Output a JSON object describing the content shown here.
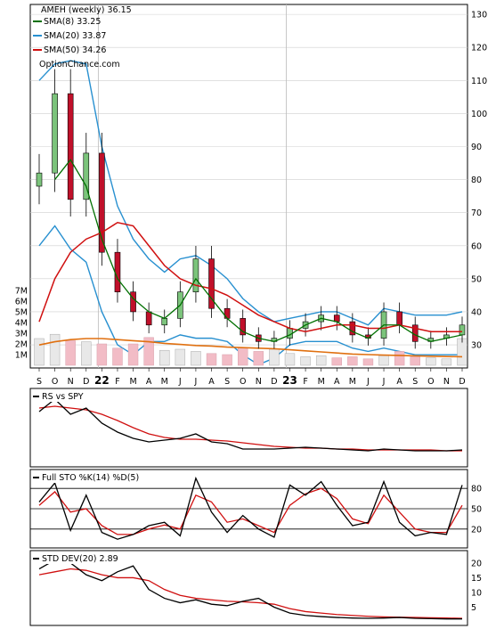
{
  "chart_data": [
    {
      "type": "line",
      "panel": "price",
      "title": "AMEH (weekly) 36.15",
      "watermark": "OptionChance.com",
      "legend": [
        {
          "label": "SMA(8) 33.25",
          "color": "#007000"
        },
        {
          "label": "SMA(20) 33.87",
          "color": "#2890d0"
        },
        {
          "label": "SMA(50) 34.26",
          "color": "#d01010"
        }
      ],
      "y_ticks": [
        "130",
        "120",
        "110",
        "100",
        "90",
        "80",
        "70",
        "60",
        "50",
        "40",
        "30"
      ],
      "ylim": [
        23,
        133
      ],
      "months": [
        "S",
        "O",
        "N",
        "D",
        "22",
        "F",
        "M",
        "A",
        "M",
        "J",
        "J",
        "A",
        "S",
        "O",
        "N",
        "D",
        "23",
        "F",
        "M",
        "A",
        "M",
        "J",
        "J",
        "A",
        "S",
        "O",
        "N",
        "D"
      ],
      "close_monthly": [
        82,
        106,
        74,
        88,
        58,
        46,
        40,
        36,
        38,
        46,
        56,
        41,
        38,
        33,
        31,
        32,
        35,
        37,
        39,
        37,
        33,
        32,
        40,
        36,
        31,
        32,
        33,
        36
      ],
      "sma8_monthly": [
        null,
        80,
        86,
        78,
        62,
        50,
        44,
        40,
        38,
        42,
        50,
        44,
        38,
        34,
        32,
        31,
        33,
        36,
        38,
        37,
        34,
        32,
        36,
        36,
        33,
        31,
        32,
        33
      ],
      "sma50_monthly": [
        37,
        50,
        58,
        62,
        64,
        67,
        66,
        60,
        54,
        50,
        48,
        47,
        45,
        42,
        39,
        37,
        35,
        34,
        35,
        36,
        36,
        35,
        35,
        36,
        35,
        34,
        34,
        34
      ],
      "bb_upper_monthly": [
        110,
        115,
        116,
        115,
        90,
        72,
        62,
        56,
        52,
        56,
        57,
        54,
        50,
        44,
        40,
        37,
        38,
        39,
        40,
        40,
        38,
        36,
        41,
        40,
        39,
        39,
        39,
        40
      ],
      "bb_lower_monthly": [
        60,
        66,
        59,
        55,
        40,
        30,
        27,
        31,
        31,
        33,
        32,
        32,
        31,
        27,
        24,
        26,
        30,
        31,
        31,
        31,
        29,
        28,
        29,
        28,
        27,
        27,
        27,
        27
      ]
    },
    {
      "type": "bar",
      "panel": "volume",
      "y_ticks": [
        "7M",
        "6M",
        "5M",
        "4M",
        "3M",
        "2M",
        "1M"
      ],
      "ylim": [
        0,
        7000000
      ],
      "volume_monthly": [
        2500000,
        2900000,
        2300000,
        2200000,
        2000000,
        1600000,
        2000000,
        2600000,
        1400000,
        1500000,
        1300000,
        1100000,
        1000000,
        1600000,
        1300000,
        1500000,
        1100000,
        800000,
        900000,
        700000,
        800000,
        600000,
        900000,
        1300000,
        800000,
        700000,
        600000,
        2500000
      ],
      "volume_avg_monthly": [
        1900000,
        2200000,
        2400000,
        2500000,
        2500000,
        2400000,
        2300000,
        2200000,
        2050000,
        1950000,
        1850000,
        1800000,
        1700000,
        1650000,
        1600000,
        1550000,
        1450000,
        1350000,
        1250000,
        1150000,
        1050000,
        1000000,
        950000,
        920000,
        880000,
        850000,
        820000,
        800000
      ]
    },
    {
      "type": "line",
      "panel": "rs",
      "title": "RS vs SPY",
      "rs_monthly": [
        58,
        72,
        55,
        62,
        45,
        35,
        28,
        24,
        26,
        28,
        33,
        24,
        22,
        16,
        16,
        16,
        17,
        18,
        17,
        16,
        15,
        14,
        16,
        15,
        14,
        14,
        14,
        15
      ],
      "rs_avg_monthly": [
        62,
        64,
        62,
        60,
        55,
        48,
        40,
        33,
        29,
        27,
        27,
        26,
        25,
        23,
        21,
        19,
        18,
        17,
        17,
        16,
        16,
        15,
        15,
        15,
        15,
        15,
        14,
        14
      ]
    },
    {
      "type": "line",
      "panel": "stochastic",
      "title": "Full STO %K(14) %D(5)",
      "y_ticks": [
        "80",
        "50",
        "20"
      ],
      "ylim": [
        0,
        100
      ],
      "k_monthly": [
        60,
        88,
        18,
        70,
        15,
        5,
        12,
        25,
        30,
        10,
        95,
        45,
        15,
        40,
        20,
        8,
        85,
        70,
        90,
        55,
        25,
        30,
        90,
        30,
        10,
        15,
        12,
        85
      ],
      "d_monthly": [
        55,
        75,
        45,
        50,
        25,
        12,
        12,
        20,
        26,
        20,
        70,
        60,
        30,
        35,
        25,
        15,
        55,
        72,
        80,
        65,
        35,
        28,
        70,
        45,
        20,
        15,
        15,
        55
      ]
    },
    {
      "type": "line",
      "panel": "stddev",
      "title": "STD DEV(20) 2.89",
      "y_ticks": [
        "20",
        "15",
        "10",
        "5"
      ],
      "ylim": [
        0,
        23
      ],
      "std_monthly": [
        18,
        21,
        20,
        16,
        14,
        17,
        19,
        11,
        8,
        6.5,
        7.5,
        6,
        5.5,
        7,
        8,
        5,
        3,
        2.2,
        1.8,
        1.5,
        1.3,
        1.2,
        1.3,
        1.5,
        1.2,
        1.1,
        1.0,
        1.0
      ],
      "std_avg_monthly": [
        16,
        17,
        18,
        17.5,
        16,
        15,
        15,
        14,
        11,
        9,
        8,
        7.5,
        7,
        6.8,
        6.5,
        6,
        4.5,
        3.5,
        3,
        2.5,
        2.2,
        1.9,
        1.7,
        1.6,
        1.5,
        1.4,
        1.3,
        1.2
      ]
    }
  ]
}
